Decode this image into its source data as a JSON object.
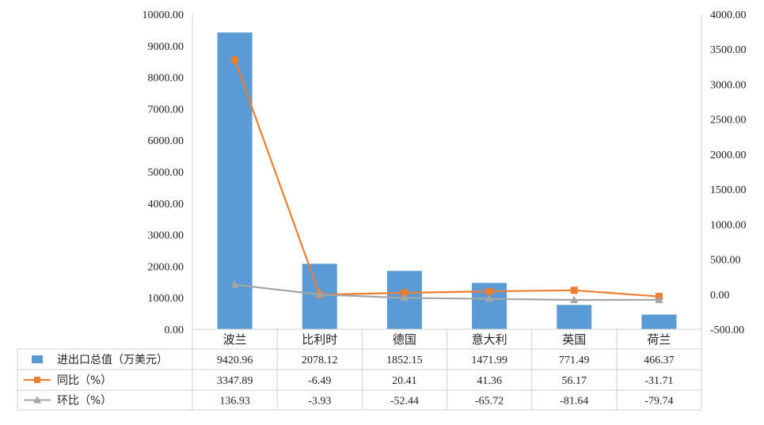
{
  "chart_data": {
    "type": "bar",
    "categories": [
      "波兰",
      "比利时",
      "德国",
      "意大利",
      "英国",
      "荷兰"
    ],
    "series": [
      {
        "name": "进出口总值（万美元）",
        "type": "bar",
        "axis": "left",
        "color": "#5b9bd5",
        "values": [
          9420.96,
          2078.12,
          1852.15,
          1471.99,
          771.49,
          466.37
        ]
      },
      {
        "name": "同比（%）",
        "type": "line",
        "axis": "right",
        "color": "#ed7d31",
        "marker": "square",
        "values": [
          3347.89,
          -6.49,
          20.41,
          41.36,
          56.17,
          -31.71
        ]
      },
      {
        "name": "环比（%）",
        "type": "line",
        "axis": "right",
        "color": "#a5a5a5",
        "marker": "triangle",
        "values": [
          136.93,
          -3.93,
          -52.44,
          -65.72,
          -81.64,
          -79.74
        ]
      }
    ],
    "y_left": {
      "range": [
        0,
        10000
      ],
      "ticks": [
        "0.00",
        "1000.00",
        "2000.00",
        "3000.00",
        "4000.00",
        "5000.00",
        "6000.00",
        "7000.00",
        "8000.00",
        "9000.00",
        "10000.00"
      ]
    },
    "y_right": {
      "range": [
        -500,
        4000
      ],
      "ticks": [
        "-500.00",
        "0.00",
        "500.00",
        "1000.00",
        "1500.00",
        "2000.00",
        "2500.00",
        "3000.00",
        "3500.00",
        "4000.00"
      ]
    },
    "grid": false,
    "legend": "data-table-below"
  }
}
